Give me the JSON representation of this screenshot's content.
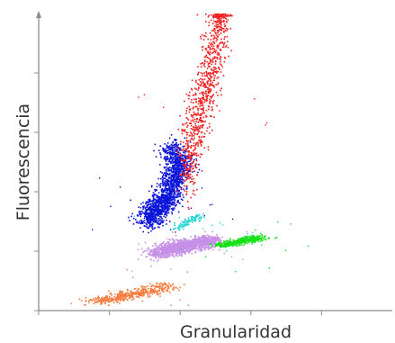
{
  "chart_data": {
    "type": "scatter",
    "title": "",
    "xlabel": "Granularidad",
    "ylabel": "Fluorescencia",
    "xlim": [
      0,
      1
    ],
    "ylim": [
      0,
      1
    ],
    "x_ticks": [
      0,
      0.2,
      0.4,
      0.6,
      0.8
    ],
    "y_ticks": [
      0,
      0.2,
      0.4,
      0.6,
      0.8
    ],
    "tick_labels_visible": false,
    "grid": false,
    "legend": "none",
    "series": [
      {
        "color": "#f47a3c",
        "summary": {
          "x_center": 0.25,
          "y_center": 0.05,
          "x_spread": 0.06,
          "y_spread": 0.015,
          "n_points": 420
        },
        "values": [
          {
            "x": 0.16,
            "y": 0.035
          },
          {
            "x": 0.2,
            "y": 0.04
          },
          {
            "x": 0.24,
            "y": 0.05
          },
          {
            "x": 0.28,
            "y": 0.06
          },
          {
            "x": 0.32,
            "y": 0.07
          },
          {
            "x": 0.36,
            "y": 0.09
          }
        ]
      },
      {
        "color": "#c68fe6",
        "summary": {
          "x_center": 0.41,
          "y_center": 0.22,
          "x_spread": 0.045,
          "y_spread": 0.03,
          "n_points": 1300
        },
        "values": [
          {
            "x": 0.33,
            "y": 0.19
          },
          {
            "x": 0.37,
            "y": 0.21
          },
          {
            "x": 0.41,
            "y": 0.22
          },
          {
            "x": 0.45,
            "y": 0.23
          },
          {
            "x": 0.49,
            "y": 0.24
          }
        ]
      },
      {
        "color": "#0b14d8",
        "summary": {
          "x_center": 0.35,
          "y_center": 0.37,
          "x_spread": 0.04,
          "y_spread": 0.055,
          "n_points": 1600
        },
        "values": [
          {
            "x": 0.3,
            "y": 0.3
          },
          {
            "x": 0.33,
            "y": 0.34
          },
          {
            "x": 0.36,
            "y": 0.38
          },
          {
            "x": 0.38,
            "y": 0.44
          },
          {
            "x": 0.4,
            "y": 0.5
          },
          {
            "x": 0.37,
            "y": 0.55
          }
        ]
      },
      {
        "color": "#2ad4d4",
        "summary": {
          "x_center": 0.42,
          "y_center": 0.3,
          "x_spread": 0.02,
          "y_spread": 0.02,
          "n_points": 100
        },
        "values": [
          {
            "x": 0.39,
            "y": 0.28
          },
          {
            "x": 0.42,
            "y": 0.3
          },
          {
            "x": 0.45,
            "y": 0.32
          }
        ]
      },
      {
        "color": "#16e016",
        "summary": {
          "x_center": 0.57,
          "y_center": 0.23,
          "x_spread": 0.035,
          "y_spread": 0.012,
          "n_points": 380
        },
        "values": [
          {
            "x": 0.51,
            "y": 0.22
          },
          {
            "x": 0.55,
            "y": 0.23
          },
          {
            "x": 0.59,
            "y": 0.24
          },
          {
            "x": 0.63,
            "y": 0.25
          }
        ]
      },
      {
        "color": "#ef2020",
        "summary": {
          "x_center": 0.47,
          "y_center": 0.72,
          "x_spread": 0.025,
          "y_spread": 0.22,
          "n_points": 900
        },
        "values": [
          {
            "x": 0.41,
            "y": 0.48
          },
          {
            "x": 0.43,
            "y": 0.55
          },
          {
            "x": 0.45,
            "y": 0.65
          },
          {
            "x": 0.47,
            "y": 0.75
          },
          {
            "x": 0.49,
            "y": 0.85
          },
          {
            "x": 0.51,
            "y": 0.95
          },
          {
            "x": 0.52,
            "y": 1.0
          }
        ]
      }
    ]
  }
}
